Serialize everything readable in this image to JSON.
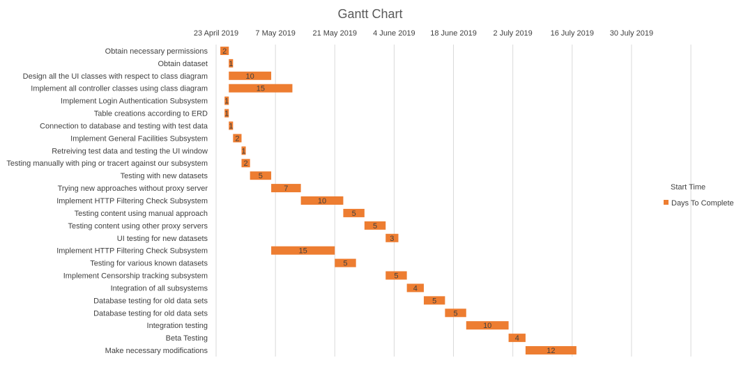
{
  "chart_data": {
    "type": "bar",
    "orientation": "horizontal-stacked-gantt",
    "title": "Gantt Chart",
    "xlabel": "",
    "ylabel": "",
    "x_axis_position": "top",
    "xlim": [
      "2019-04-23",
      "2019-08-12"
    ],
    "x_ticks": [
      "23 April 2019",
      "7 May 2019",
      "21 May 2019",
      "4 June 2019",
      "18 June 2019",
      "2 July 2019",
      "16 July 2019",
      "30 July 2019"
    ],
    "grid": true,
    "legend_position": "right",
    "series": [
      {
        "name": "Start Time",
        "color": "none"
      },
      {
        "name": "Days To Complete",
        "color": "#ED7D31"
      }
    ],
    "tasks": [
      {
        "name": "Obtain necessary permissions",
        "start": "2019-04-24",
        "days": 2
      },
      {
        "name": "Obtain dataset",
        "start": "2019-04-26",
        "days": 1
      },
      {
        "name": "Design all the UI classes with respect to class diagram",
        "start": "2019-04-26",
        "days": 10
      },
      {
        "name": "Implement all controller classes using class diagram",
        "start": "2019-04-26",
        "days": 15
      },
      {
        "name": "Implement Login Authentication Subsystem",
        "start": "2019-04-25",
        "days": 1
      },
      {
        "name": "Table creations according to ERD",
        "start": "2019-04-25",
        "days": 1
      },
      {
        "name": "Connection to database and testing with test data",
        "start": "2019-04-26",
        "days": 1
      },
      {
        "name": "Implement General Facilities Subsystem",
        "start": "2019-04-27",
        "days": 2
      },
      {
        "name": "Retreiving test data and testing the UI window",
        "start": "2019-04-29",
        "days": 1
      },
      {
        "name": "Testing manually with ping or tracert against our subsystem",
        "start": "2019-04-29",
        "days": 2
      },
      {
        "name": "Testing with new datasets",
        "start": "2019-05-01",
        "days": 5
      },
      {
        "name": "Trying new approaches without proxy server",
        "start": "2019-05-06",
        "days": 7
      },
      {
        "name": "Implement HTTP Filtering Check Subsystem",
        "start": "2019-05-13",
        "days": 10
      },
      {
        "name": "Testing content using manual approach",
        "start": "2019-05-23",
        "days": 5
      },
      {
        "name": "Testing content using other proxy servers",
        "start": "2019-05-28",
        "days": 5
      },
      {
        "name": "UI testing for new datasets",
        "start": "2019-06-02",
        "days": 3
      },
      {
        "name": "Implement HTTP Filtering Check Subsystem",
        "start": "2019-05-06",
        "days": 15
      },
      {
        "name": "Testing for various known datasets",
        "start": "2019-05-21",
        "days": 5
      },
      {
        "name": "Implement Censorship tracking subsystem",
        "start": "2019-06-02",
        "days": 5
      },
      {
        "name": "Integration of all subsystems",
        "start": "2019-06-07",
        "days": 4
      },
      {
        "name": "Database testing for old data sets",
        "start": "2019-06-11",
        "days": 5
      },
      {
        "name": "Database testing for old data sets",
        "start": "2019-06-16",
        "days": 5
      },
      {
        "name": "Integration testing",
        "start": "2019-06-21",
        "days": 10
      },
      {
        "name": "Beta Testing",
        "start": "2019-07-01",
        "days": 4
      },
      {
        "name": "Make necessary modifications",
        "start": "2019-07-05",
        "days": 12
      }
    ]
  }
}
